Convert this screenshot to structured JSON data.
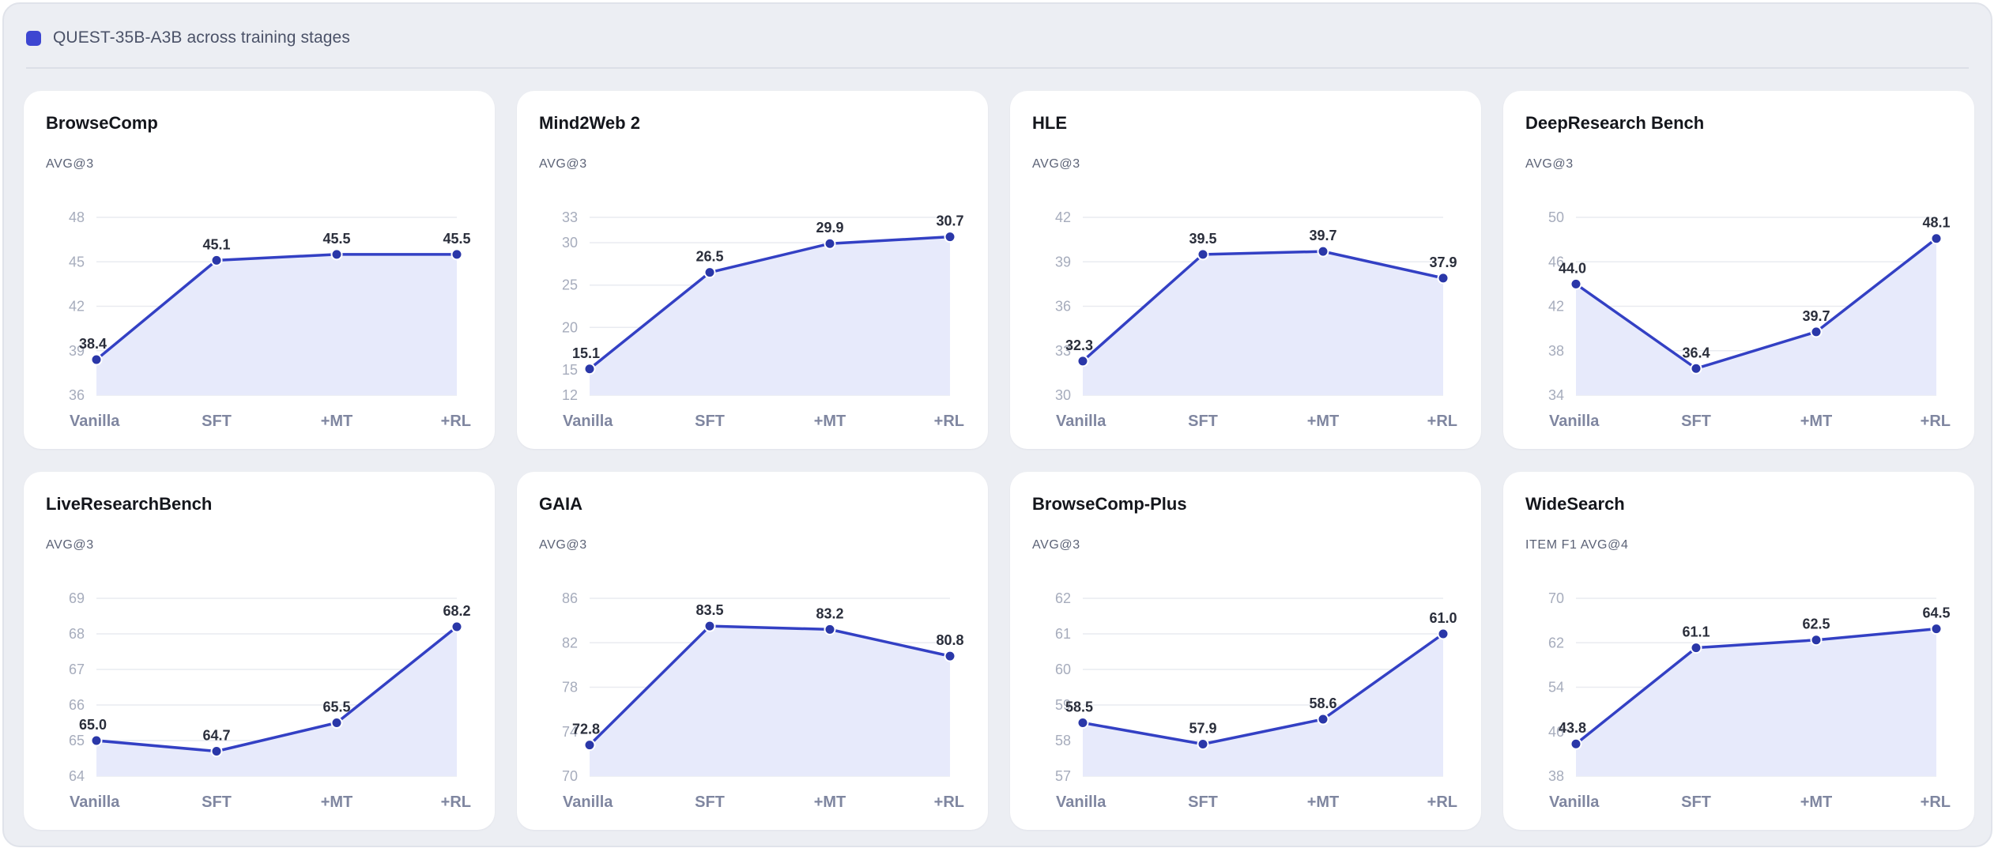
{
  "header": {
    "title": "QUEST-35B-A3B across training stages",
    "swatch_color": "#3d46d1"
  },
  "colors": {
    "line": "#3340c4",
    "point": "#2a37a8",
    "area": "#e7eafb",
    "grid": "#e9ebf0"
  },
  "chart_data": [
    {
      "type": "line",
      "title": "BrowseComp",
      "ylabel": "AVG@3",
      "categories": [
        "Vanilla",
        "SFT",
        "+MT",
        "+RL"
      ],
      "values": [
        38.4,
        45.1,
        45.5,
        45.5
      ],
      "ylim": [
        36,
        48
      ],
      "yticks": [
        36,
        39,
        42,
        45,
        48
      ],
      "value_labels": [
        "38.4",
        "45.1",
        "45.5",
        "45.5"
      ]
    },
    {
      "type": "line",
      "title": "Mind2Web 2",
      "ylabel": "AVG@3",
      "categories": [
        "Vanilla",
        "SFT",
        "+MT",
        "+RL"
      ],
      "values": [
        15.1,
        26.5,
        29.9,
        30.7
      ],
      "ylim": [
        12,
        33
      ],
      "yticks": [
        12,
        15,
        20,
        25,
        30,
        33
      ],
      "value_labels": [
        "15.1",
        "26.5",
        "29.9",
        "30.7"
      ]
    },
    {
      "type": "line",
      "title": "HLE",
      "ylabel": "AVG@3",
      "categories": [
        "Vanilla",
        "SFT",
        "+MT",
        "+RL"
      ],
      "values": [
        32.3,
        39.5,
        39.7,
        37.9
      ],
      "ylim": [
        30,
        42
      ],
      "yticks": [
        30,
        33,
        36,
        39,
        42
      ],
      "value_labels": [
        "32.3",
        "39.5",
        "39.7",
        "37.9"
      ]
    },
    {
      "type": "line",
      "title": "DeepResearch Bench",
      "ylabel": "AVG@3",
      "categories": [
        "Vanilla",
        "SFT",
        "+MT",
        "+RL"
      ],
      "values": [
        44.0,
        36.4,
        39.7,
        48.1
      ],
      "ylim": [
        34,
        50
      ],
      "yticks": [
        34,
        38,
        42,
        46,
        50
      ],
      "value_labels": [
        "44.0",
        "36.4",
        "39.7",
        "48.1"
      ]
    },
    {
      "type": "line",
      "title": "LiveResearchBench",
      "ylabel": "AVG@3",
      "categories": [
        "Vanilla",
        "SFT",
        "+MT",
        "+RL"
      ],
      "values": [
        65.0,
        64.7,
        65.5,
        68.2
      ],
      "ylim": [
        64,
        69
      ],
      "yticks": [
        64,
        65,
        66,
        67,
        68,
        69
      ],
      "value_labels": [
        "65.0",
        "64.7",
        "65.5",
        "68.2"
      ]
    },
    {
      "type": "line",
      "title": "GAIA",
      "ylabel": "AVG@3",
      "categories": [
        "Vanilla",
        "SFT",
        "+MT",
        "+RL"
      ],
      "values": [
        72.8,
        83.5,
        83.2,
        80.8
      ],
      "ylim": [
        70,
        86
      ],
      "yticks": [
        70,
        74,
        78,
        82,
        86
      ],
      "value_labels": [
        "72.8",
        "83.5",
        "83.2",
        "80.8"
      ]
    },
    {
      "type": "line",
      "title": "BrowseComp-Plus",
      "ylabel": "AVG@3",
      "categories": [
        "Vanilla",
        "SFT",
        "+MT",
        "+RL"
      ],
      "values": [
        58.5,
        57.9,
        58.6,
        61.0
      ],
      "ylim": [
        57,
        62
      ],
      "yticks": [
        57,
        58,
        59,
        60,
        61,
        62
      ],
      "value_labels": [
        "58.5",
        "57.9",
        "58.6",
        "61.0"
      ]
    },
    {
      "type": "line",
      "title": "WideSearch",
      "ylabel": "ITEM F1 AVG@4",
      "categories": [
        "Vanilla",
        "SFT",
        "+MT",
        "+RL"
      ],
      "values": [
        43.8,
        61.1,
        62.5,
        64.5
      ],
      "ylim": [
        38,
        70
      ],
      "yticks": [
        38,
        46,
        54,
        62,
        70
      ],
      "value_labels": [
        "43.8",
        "61.1",
        "62.5",
        "64.5"
      ]
    }
  ]
}
